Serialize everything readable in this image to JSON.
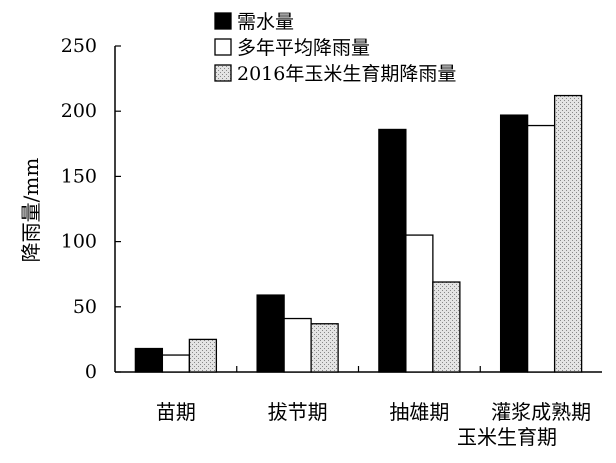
{
  "chart_data": {
    "type": "bar",
    "title": "",
    "xlabel": "玉米生育期",
    "ylabel": "降雨量/mm",
    "ylim": [
      0,
      250
    ],
    "yticks": [
      0,
      50,
      100,
      150,
      200,
      250
    ],
    "grid": false,
    "legend_position": "top",
    "categories": [
      "苗期",
      "拔节期",
      "抽雄期",
      "灌浆成熟期"
    ],
    "series": [
      {
        "name": "需水量",
        "values": [
          18,
          59,
          186,
          197
        ],
        "style": "solid-black",
        "color": "#000000"
      },
      {
        "name": "多年平均降雨量",
        "values": [
          13,
          41,
          105,
          189
        ],
        "style": "white",
        "color": "#ffffff"
      },
      {
        "name": "2016年玉米生育期降雨量",
        "values": [
          25,
          37,
          69,
          212
        ],
        "style": "dotted-gray",
        "color": "#cfcfcf"
      }
    ]
  }
}
